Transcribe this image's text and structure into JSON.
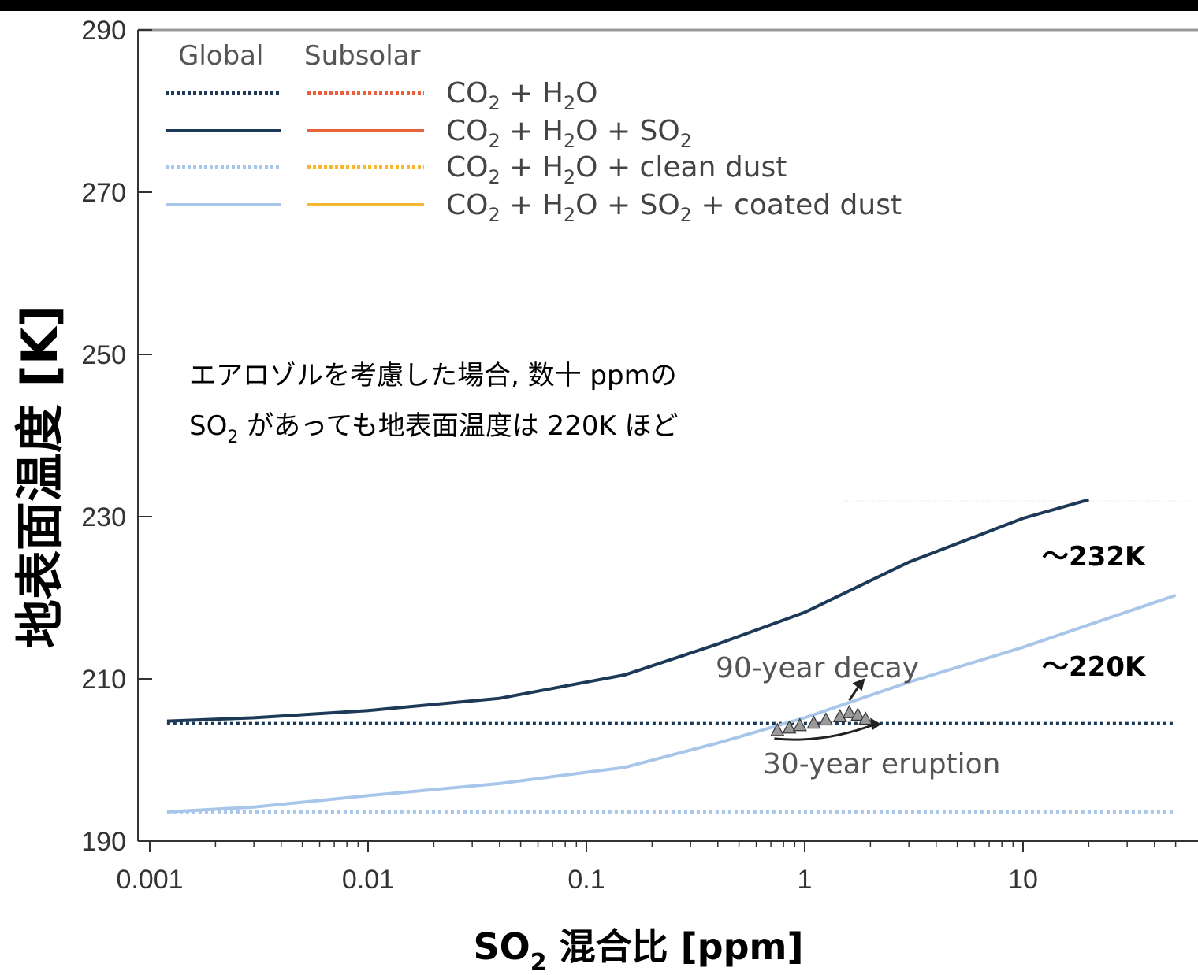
{
  "chart_data": {
    "type": "line",
    "xscale": "log",
    "xlim": [
      0.001,
      50
    ],
    "ylim": [
      190,
      290
    ],
    "xticks": [
      {
        "value": 0.001,
        "label": "0.001"
      },
      {
        "value": 0.01,
        "label": "0.01"
      },
      {
        "value": 0.1,
        "label": "0.1"
      },
      {
        "value": 1,
        "label": "1"
      },
      {
        "value": 10,
        "label": "10"
      }
    ],
    "yticks": [
      190,
      210,
      230,
      250,
      270,
      290
    ],
    "xlabel": {
      "main": "SO",
      "sub": "2",
      "rest": " 混合比 [ppm]"
    },
    "ylabel": "地表面温度 [K]",
    "legend": {
      "headers": [
        "Global",
        "Subsolar"
      ],
      "entries": [
        {
          "parts": [
            [
              "CO",
              "n"
            ],
            [
              "2",
              "s"
            ],
            [
              " + H",
              "n"
            ],
            [
              "2",
              "s"
            ],
            [
              "O",
              "n"
            ]
          ],
          "global_color": "#1c3a57",
          "subsolar_color": "#e8603c",
          "dash": true
        },
        {
          "parts": [
            [
              "CO",
              "n"
            ],
            [
              "2",
              "s"
            ],
            [
              " + H",
              "n"
            ],
            [
              "2",
              "s"
            ],
            [
              "O + SO",
              "n"
            ],
            [
              "2",
              "s"
            ]
          ],
          "global_color": "#1c3a57",
          "subsolar_color": "#e8603c",
          "dash": false
        },
        {
          "parts": [
            [
              "CO",
              "n"
            ],
            [
              "2",
              "s"
            ],
            [
              " + H",
              "n"
            ],
            [
              "2",
              "s"
            ],
            [
              "O + clean dust",
              "n"
            ]
          ],
          "global_color": "#a8c6ea",
          "subsolar_color": "#f5b82e",
          "dash": true
        },
        {
          "parts": [
            [
              "CO",
              "n"
            ],
            [
              "2",
              "s"
            ],
            [
              " + H",
              "n"
            ],
            [
              "2",
              "s"
            ],
            [
              "O + SO",
              "n"
            ],
            [
              "2",
              "s"
            ],
            [
              " + coated dust",
              "n"
            ]
          ],
          "global_color": "#a8c6ea",
          "subsolar_color": "#f5b82e",
          "dash": false
        }
      ]
    },
    "series": [
      {
        "color": "#1c3a57",
        "dash": false,
        "x": [
          0.0012,
          0.003,
          0.01,
          0.04,
          0.15,
          0.4,
          1,
          3,
          10,
          20
        ],
        "y": [
          204.8,
          205.2,
          206.1,
          207.6,
          210.5,
          214.3,
          218.2,
          224.4,
          229.8,
          232.1
        ]
      },
      {
        "color": "#1c3a57",
        "dash": true,
        "x": [
          0.0012,
          50
        ],
        "y": [
          204.5,
          204.5
        ]
      },
      {
        "color": "#a8c6ea",
        "dash": false,
        "x": [
          0.0012,
          0.003,
          0.01,
          0.04,
          0.15,
          0.4,
          1,
          3,
          10,
          50
        ],
        "y": [
          193.6,
          194.2,
          195.6,
          197.1,
          199.1,
          202.1,
          205.2,
          209.6,
          213.9,
          220.3
        ]
      },
      {
        "color": "#a8c6ea",
        "dash": true,
        "x": [
          0.0012,
          50
        ],
        "y": [
          193.6,
          193.6
        ]
      }
    ],
    "events": {
      "decay_label": "90-year decay",
      "eruption_label": "30-year eruption",
      "markers": [
        {
          "x": 0.75,
          "y": 203.6
        },
        {
          "x": 0.85,
          "y": 203.9
        },
        {
          "x": 0.95,
          "y": 204.2
        },
        {
          "x": 1.1,
          "y": 204.5
        },
        {
          "x": 1.25,
          "y": 204.9
        },
        {
          "x": 1.45,
          "y": 205.3
        },
        {
          "x": 1.6,
          "y": 205.8
        },
        {
          "x": 1.75,
          "y": 205.5
        },
        {
          "x": 1.9,
          "y": 205.0
        }
      ]
    },
    "annotation": {
      "line1": "エアロゾルを考慮した場合, 数十 ppmの",
      "line2": {
        "main": "SO",
        "sub": "2",
        "rest": " があっても地表面温度は 220K ほど"
      }
    },
    "end_labels": [
      "〜232K",
      "〜220K"
    ]
  }
}
